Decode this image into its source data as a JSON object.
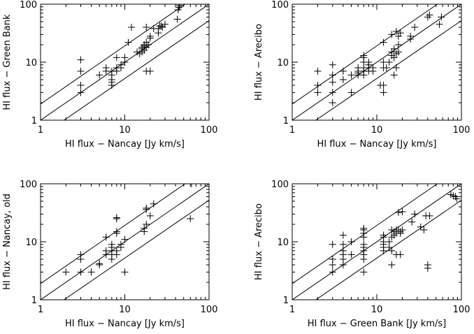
{
  "chart_data": [
    {
      "type": "scatter",
      "xlabel": "HI flux − Nancay [Jy km/s]",
      "ylabel": "HI flux − Green Bank",
      "xscale": "log",
      "yscale": "log",
      "xlim": [
        1,
        100
      ],
      "ylim": [
        1,
        100
      ],
      "xticks": [
        {
          "v": 1,
          "label": "1"
        },
        {
          "v": 10,
          "label": "10"
        },
        {
          "v": 100,
          "label": "100"
        }
      ],
      "yticks": [
        {
          "v": 1,
          "label": "1"
        },
        {
          "v": 10,
          "label": "10"
        },
        {
          "v": 100,
          "label": "100"
        }
      ],
      "marker": "plus",
      "reference_lines": [
        {
          "from": [
            1,
            1.9
          ],
          "to": [
            52,
            100
          ]
        },
        {
          "from": [
            1,
            1
          ],
          "to": [
            100,
            100
          ]
        },
        {
          "from": [
            1.9,
            1
          ],
          "to": [
            100,
            52
          ]
        }
      ],
      "points": [
        [
          3,
          3
        ],
        [
          3,
          4
        ],
        [
          3,
          7
        ],
        [
          3,
          11
        ],
        [
          5,
          6
        ],
        [
          6,
          7
        ],
        [
          6,
          8
        ],
        [
          7,
          4
        ],
        [
          7,
          4.5
        ],
        [
          7,
          5
        ],
        [
          7,
          6
        ],
        [
          7,
          7
        ],
        [
          8,
          7
        ],
        [
          8,
          8
        ],
        [
          8,
          12
        ],
        [
          9,
          8
        ],
        [
          9,
          9
        ],
        [
          10,
          10
        ],
        [
          10,
          12
        ],
        [
          11,
          22
        ],
        [
          12,
          40
        ],
        [
          14,
          15
        ],
        [
          15,
          14
        ],
        [
          16,
          15
        ],
        [
          16,
          17
        ],
        [
          16,
          18
        ],
        [
          17,
          16
        ],
        [
          17,
          19
        ],
        [
          17,
          20
        ],
        [
          18,
          7
        ],
        [
          18,
          18
        ],
        [
          18,
          22
        ],
        [
          18,
          40
        ],
        [
          19,
          20
        ],
        [
          20,
          7
        ],
        [
          20,
          26
        ],
        [
          20,
          28
        ],
        [
          22,
          38
        ],
        [
          25,
          32
        ],
        [
          25,
          38
        ],
        [
          26,
          42
        ],
        [
          27,
          42
        ],
        [
          28,
          40
        ],
        [
          30,
          45
        ],
        [
          42,
          55
        ],
        [
          43,
          80
        ],
        [
          44,
          88
        ],
        [
          45,
          95
        ]
      ]
    },
    {
      "type": "scatter",
      "xlabel": "HI flux − Nancay [Jy km/s]",
      "ylabel": "HI flux − Arecibo",
      "xscale": "log",
      "yscale": "log",
      "xlim": [
        1,
        100
      ],
      "ylim": [
        1,
        100
      ],
      "xticks": [
        {
          "v": 1,
          "label": "1"
        },
        {
          "v": 10,
          "label": "10"
        },
        {
          "v": 100,
          "label": "100"
        }
      ],
      "yticks": [
        {
          "v": 1,
          "label": "1"
        },
        {
          "v": 10,
          "label": "10"
        },
        {
          "v": 100,
          "label": "100"
        }
      ],
      "marker": "plus",
      "reference_lines": [
        {
          "from": [
            1,
            1.9
          ],
          "to": [
            52,
            100
          ]
        },
        {
          "from": [
            1,
            1
          ],
          "to": [
            100,
            100
          ]
        },
        {
          "from": [
            1.9,
            1
          ],
          "to": [
            100,
            52
          ]
        }
      ],
      "points": [
        [
          2,
          3
        ],
        [
          2,
          4
        ],
        [
          2,
          7
        ],
        [
          3,
          2
        ],
        [
          3,
          3
        ],
        [
          3,
          4.5
        ],
        [
          3,
          6
        ],
        [
          3,
          9
        ],
        [
          4,
          5
        ],
        [
          4,
          7
        ],
        [
          5,
          3
        ],
        [
          5,
          6
        ],
        [
          6,
          6
        ],
        [
          6,
          6.5
        ],
        [
          6,
          7
        ],
        [
          6,
          8
        ],
        [
          7,
          6
        ],
        [
          7,
          7
        ],
        [
          7,
          8
        ],
        [
          7,
          10
        ],
        [
          7,
          12
        ],
        [
          7,
          13
        ],
        [
          8,
          7
        ],
        [
          8,
          8
        ],
        [
          8,
          9
        ],
        [
          8,
          10
        ],
        [
          9,
          7
        ],
        [
          9,
          8
        ],
        [
          11,
          4
        ],
        [
          12,
          3
        ],
        [
          12,
          4
        ],
        [
          12,
          8
        ],
        [
          12,
          10
        ],
        [
          12,
          22
        ],
        [
          13,
          8
        ],
        [
          14,
          10
        ],
        [
          15,
          13
        ],
        [
          15,
          15
        ],
        [
          15,
          30
        ],
        [
          16,
          6
        ],
        [
          16,
          12
        ],
        [
          16,
          17
        ],
        [
          17,
          8
        ],
        [
          17,
          14
        ],
        [
          17,
          34
        ],
        [
          18,
          15
        ],
        [
          18,
          20
        ],
        [
          18,
          28
        ],
        [
          19,
          32
        ],
        [
          25,
          25
        ],
        [
          25,
          28
        ],
        [
          28,
          40
        ],
        [
          40,
          60
        ],
        [
          42,
          65
        ],
        [
          55,
          45
        ],
        [
          58,
          60
        ]
      ]
    },
    {
      "type": "scatter",
      "xlabel": "HI flux − Nancay [Jy km/s]",
      "ylabel": "HI flux − Nancay, old",
      "xscale": "log",
      "yscale": "log",
      "xlim": [
        1,
        100
      ],
      "ylim": [
        1,
        100
      ],
      "xticks": [
        {
          "v": 1,
          "label": "1"
        },
        {
          "v": 10,
          "label": "10"
        },
        {
          "v": 100,
          "label": "100"
        }
      ],
      "yticks": [
        {
          "v": 1,
          "label": "1"
        },
        {
          "v": 10,
          "label": "10"
        },
        {
          "v": 100,
          "label": "100"
        }
      ],
      "marker": "plus",
      "reference_lines": [
        {
          "from": [
            1,
            1.9
          ],
          "to": [
            52,
            100
          ]
        },
        {
          "from": [
            1,
            1
          ],
          "to": [
            100,
            100
          ]
        },
        {
          "from": [
            1.9,
            1
          ],
          "to": [
            100,
            52
          ]
        }
      ],
      "points": [
        [
          2,
          3
        ],
        [
          3,
          3
        ],
        [
          3,
          5
        ],
        [
          3,
          6
        ],
        [
          4,
          3
        ],
        [
          5,
          4
        ],
        [
          5,
          4.2
        ],
        [
          6,
          6
        ],
        [
          6,
          7
        ],
        [
          6,
          12
        ],
        [
          7,
          5
        ],
        [
          7,
          6
        ],
        [
          7,
          7
        ],
        [
          7,
          8
        ],
        [
          7,
          9
        ],
        [
          8,
          6
        ],
        [
          8,
          7
        ],
        [
          8,
          14
        ],
        [
          8,
          15
        ],
        [
          8,
          25
        ],
        [
          8,
          26
        ],
        [
          9,
          8
        ],
        [
          9,
          9
        ],
        [
          10,
          3
        ],
        [
          10,
          11
        ],
        [
          17,
          15
        ],
        [
          17,
          17
        ],
        [
          18,
          20
        ],
        [
          18,
          36
        ],
        [
          18,
          38
        ],
        [
          20,
          28
        ],
        [
          22,
          45
        ],
        [
          60,
          25
        ],
        [
          62,
          100
        ]
      ]
    },
    {
      "type": "scatter",
      "xlabel": "HI flux − Green Bank [Jy km/s]",
      "ylabel": "HI flux − Arecibo",
      "xscale": "log",
      "yscale": "log",
      "xlim": [
        1,
        100
      ],
      "ylim": [
        1,
        100
      ],
      "xticks": [
        {
          "v": 1,
          "label": "1"
        },
        {
          "v": 10,
          "label": "10"
        },
        {
          "v": 100,
          "label": "100"
        }
      ],
      "yticks": [
        {
          "v": 1,
          "label": "1"
        },
        {
          "v": 10,
          "label": "10"
        },
        {
          "v": 100,
          "label": "100"
        }
      ],
      "marker": "plus",
      "reference_lines": [
        {
          "from": [
            1,
            1.9
          ],
          "to": [
            52,
            100
          ]
        },
        {
          "from": [
            1,
            1
          ],
          "to": [
            100,
            100
          ]
        },
        {
          "from": [
            1.9,
            1
          ],
          "to": [
            100,
            52
          ]
        }
      ],
      "points": [
        [
          3,
          3
        ],
        [
          3,
          4
        ],
        [
          3,
          5
        ],
        [
          3,
          9
        ],
        [
          4,
          4
        ],
        [
          4,
          5
        ],
        [
          4,
          6
        ],
        [
          4,
          7
        ],
        [
          4,
          9
        ],
        [
          4,
          13
        ],
        [
          5,
          6
        ],
        [
          5,
          10
        ],
        [
          7,
          3
        ],
        [
          7,
          5
        ],
        [
          7,
          6
        ],
        [
          7,
          7
        ],
        [
          7,
          8
        ],
        [
          7,
          9
        ],
        [
          7,
          12
        ],
        [
          7,
          14
        ],
        [
          7,
          16
        ],
        [
          7,
          17
        ],
        [
          12,
          7
        ],
        [
          12,
          8
        ],
        [
          12,
          9
        ],
        [
          12,
          10
        ],
        [
          12,
          12
        ],
        [
          12,
          13
        ],
        [
          14,
          8
        ],
        [
          14,
          10
        ],
        [
          15,
          4
        ],
        [
          15,
          7
        ],
        [
          15,
          12
        ],
        [
          15,
          16
        ],
        [
          16,
          13
        ],
        [
          16,
          15
        ],
        [
          17,
          6
        ],
        [
          17,
          14
        ],
        [
          17,
          16
        ],
        [
          18,
          16
        ],
        [
          18,
          32
        ],
        [
          19,
          6
        ],
        [
          19,
          14
        ],
        [
          19,
          15
        ],
        [
          20,
          16
        ],
        [
          20,
          33
        ],
        [
          26,
          22
        ],
        [
          28,
          30
        ],
        [
          33,
          18
        ],
        [
          36,
          16
        ],
        [
          38,
          28
        ],
        [
          40,
          3.5
        ],
        [
          40,
          4
        ],
        [
          42,
          28
        ],
        [
          75,
          65
        ],
        [
          80,
          62
        ],
        [
          85,
          60
        ],
        [
          88,
          55
        ]
      ]
    }
  ]
}
